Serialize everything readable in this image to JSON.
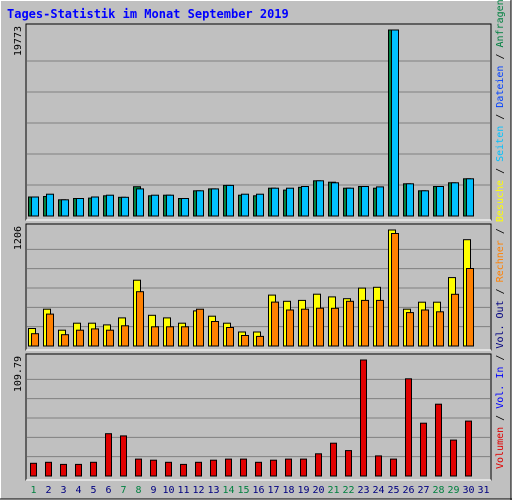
{
  "chart_data": {
    "type": "bar",
    "title": "Tages-Statistik im Monat September 2019",
    "categories": [
      "1",
      "2",
      "3",
      "4",
      "5",
      "6",
      "7",
      "8",
      "9",
      "10",
      "11",
      "12",
      "13",
      "14",
      "15",
      "16",
      "17",
      "18",
      "19",
      "20",
      "21",
      "22",
      "23",
      "24",
      "25",
      "26",
      "27",
      "28",
      "29",
      "30",
      "31"
    ],
    "weekend_categories": [
      "1",
      "7",
      "8",
      "14",
      "15",
      "21",
      "22",
      "28",
      "29"
    ],
    "panels": [
      {
        "id": "top",
        "max_label": "19773",
        "ylim": [
          0,
          19773
        ],
        "series": [
          {
            "name": "Anfragen",
            "color": "#008040",
            "values": [
              2024,
              2075,
              1720,
              1856,
              1907,
              2143,
              1992,
              3120,
              2143,
              2214,
              1856,
              2680,
              2880,
              3250,
              2214,
              2143,
              2960,
              2750,
              3050,
              3740,
              3590,
              2960,
              3136,
              2960,
              19773,
              3425,
              2680,
              3136,
              3532,
              3950,
              0
            ]
          },
          {
            "name": "Seiten",
            "color": "#00c0ff",
            "values": [
              2024,
              2320,
              1720,
              1856,
              2024,
              2214,
              1992,
              2880,
              2214,
              2214,
              1856,
              2680,
              2880,
              3250,
              2320,
              2320,
              2960,
              2960,
              3136,
              3740,
              3532,
              2960,
              3136,
              3090,
              19773,
              3425,
              2680,
              3136,
              3532,
              3950,
              0
            ]
          }
        ]
      },
      {
        "id": "mid",
        "max_label": "1206",
        "ylim": [
          0,
          1206
        ],
        "series": [
          {
            "name": "Besuche",
            "color": "#ffff00",
            "values": [
              182,
              383,
              164,
              237,
              237,
              219,
              292,
              684,
              319,
              292,
              237,
              365,
              310,
              237,
              146,
              146,
              529,
              465,
              474,
              539,
              510,
              492,
              602,
              610,
              1206,
              383,
              455,
              455,
              711,
              1105,
              0
            ]
          },
          {
            "name": "Rechner",
            "color": "#ff8000",
            "values": [
              128,
              332,
              118,
              164,
              178,
              164,
              210,
              565,
              200,
              200,
              200,
              383,
              255,
              192,
              109,
              100,
              456,
              374,
              383,
              393,
              392,
              465,
              474,
              474,
              1170,
              347,
              374,
              356,
              538,
              806,
              0
            ]
          }
        ]
      },
      {
        "id": "bottom",
        "max_label": "109.79",
        "ylim": [
          0,
          109.79
        ],
        "series": [
          {
            "name": "Volumen",
            "color": "#e00000",
            "values": [
              12,
              13,
              11,
              11,
              13,
              40,
              38,
              16,
              15,
              13,
              11,
              13,
              15,
              16,
              16,
              13,
              15,
              16,
              16,
              21,
              31,
              24,
              109.79,
              19,
              16,
              92,
              50,
              68,
              34,
              52,
              0
            ]
          }
        ]
      }
    ],
    "right_labels": [
      {
        "text": "Volumen",
        "color": "#e00000"
      },
      {
        "text": " / ",
        "color": "#000000"
      },
      {
        "text": "Vol. In",
        "color": "#0000ff"
      },
      {
        "text": " / ",
        "color": "#000000"
      },
      {
        "text": "Vol. Out",
        "color": "#000080"
      },
      {
        "text": " / ",
        "color": "#000000"
      },
      {
        "text": "Rechner",
        "color": "#ff8000"
      },
      {
        "text": " / ",
        "color": "#000000"
      },
      {
        "text": "Besuche",
        "color": "#ffff00"
      },
      {
        "text": " / ",
        "color": "#000000"
      },
      {
        "text": "Seiten",
        "color": "#00c0ff"
      },
      {
        "text": " / ",
        "color": "#000000"
      },
      {
        "text": "Dateien",
        "color": "#0040ff"
      },
      {
        "text": " / ",
        "color": "#000000"
      },
      {
        "text": "Anfragen",
        "color": "#008040"
      }
    ],
    "colors": {
      "background": "#c0c0c0",
      "panel": "#c0c0c0",
      "grid": "#808080",
      "title": "#0000ff",
      "weekend_tick": "#008040",
      "weekday_tick": "#000080"
    },
    "grid": true
  }
}
